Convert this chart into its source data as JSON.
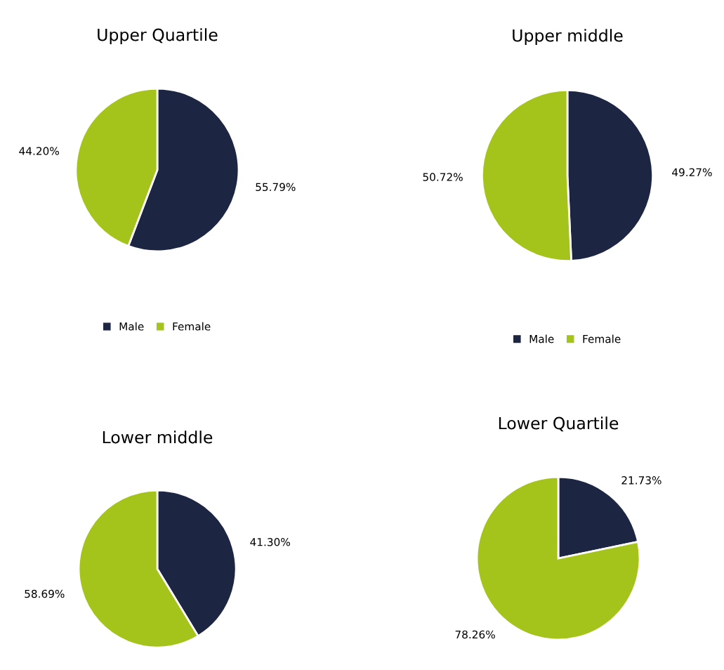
{
  "chart_data": [
    {
      "type": "pie",
      "title": "Upper Quartile",
      "categories": [
        "Male",
        "Female"
      ],
      "values": [
        55.79,
        44.2
      ],
      "colors": [
        "#1c2541",
        "#a4c41c"
      ],
      "value_labels": [
        "55.79%",
        "44.20%"
      ],
      "legend": "bottom"
    },
    {
      "type": "pie",
      "title": "Upper middle",
      "categories": [
        "Male",
        "Female"
      ],
      "values": [
        49.27,
        50.72
      ],
      "colors": [
        "#1c2541",
        "#a4c41c"
      ],
      "value_labels": [
        "49.27%",
        "50.72%"
      ],
      "legend": "bottom"
    },
    {
      "type": "pie",
      "title": "Lower middle",
      "categories": [
        null,
        null
      ],
      "values": [
        41.3,
        58.69
      ],
      "colors": [
        "#1c2541",
        "#a4c41c"
      ],
      "value_labels": [
        "41.30%",
        "58.69%"
      ]
    },
    {
      "type": "pie",
      "title": "Lower Quartile",
      "categories": [
        null,
        null
      ],
      "values": [
        21.73,
        78.26
      ],
      "colors": [
        "#1c2541",
        "#a4c41c"
      ],
      "value_labels": [
        "21.73%",
        "78.26%"
      ]
    }
  ]
}
